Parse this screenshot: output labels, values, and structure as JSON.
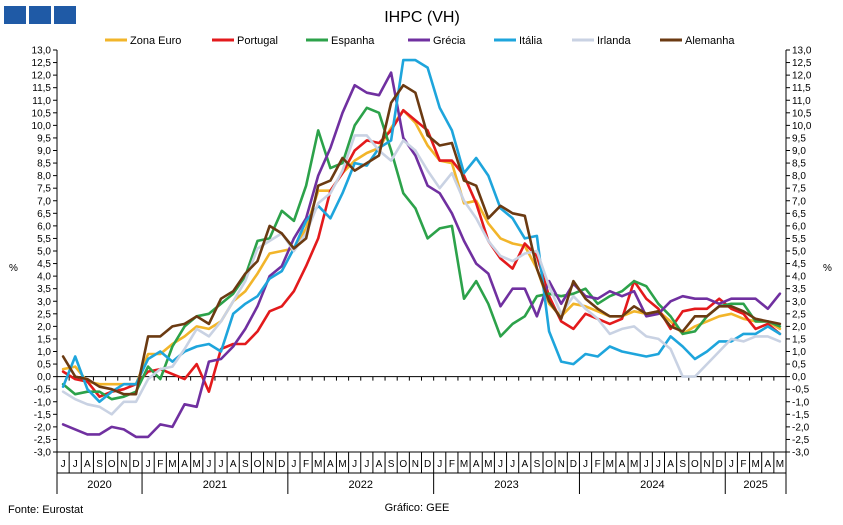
{
  "logo": {
    "blocks": 3,
    "color": "#1f5aa6"
  },
  "chart_data": {
    "type": "line",
    "title": "IHPC (VH)",
    "ylabel_left": "%",
    "ylabel_right": "%",
    "ylim": [
      -3.0,
      13.0
    ],
    "ystep": 0.5,
    "grid": false,
    "legend_position": "top",
    "x_months": [
      "J",
      "J",
      "A",
      "S",
      "O",
      "N",
      "D",
      "J",
      "F",
      "M",
      "A",
      "M",
      "J",
      "J",
      "A",
      "S",
      "O",
      "N",
      "D",
      "J",
      "F",
      "M",
      "A",
      "M",
      "J",
      "J",
      "A",
      "S",
      "O",
      "N",
      "D",
      "J",
      "F",
      "M",
      "A",
      "M",
      "J",
      "J",
      "A",
      "S",
      "O",
      "N",
      "D",
      "J",
      "F",
      "M",
      "A",
      "M",
      "J",
      "J",
      "A",
      "S",
      "O",
      "N",
      "D",
      "J",
      "F",
      "M",
      "A",
      "M"
    ],
    "years": [
      {
        "label": "2020",
        "start": 0,
        "end": 6
      },
      {
        "label": "2021",
        "start": 7,
        "end": 18
      },
      {
        "label": "2022",
        "start": 19,
        "end": 30
      },
      {
        "label": "2023",
        "start": 31,
        "end": 42
      },
      {
        "label": "2024",
        "start": 43,
        "end": 54
      },
      {
        "label": "2025",
        "start": 55,
        "end": 59
      }
    ],
    "series": [
      {
        "name": "Zona Euro",
        "color": "#f2b52a",
        "values": [
          0.3,
          0.4,
          -0.2,
          -0.3,
          -0.3,
          -0.3,
          -0.3,
          0.9,
          0.9,
          1.3,
          1.6,
          2.0,
          1.9,
          2.2,
          3.0,
          3.4,
          4.1,
          4.9,
          5.0,
          5.1,
          5.9,
          7.4,
          7.4,
          8.1,
          8.6,
          8.9,
          9.1,
          9.9,
          10.6,
          10.1,
          9.2,
          8.6,
          8.5,
          6.9,
          7.0,
          6.1,
          5.5,
          5.3,
          5.2,
          4.3,
          2.9,
          2.4,
          2.9,
          2.8,
          2.6,
          2.4,
          2.4,
          2.6,
          2.5,
          2.6,
          2.2,
          1.7,
          2.0,
          2.2,
          2.4,
          2.5,
          2.3,
          2.2,
          2.2,
          1.9
        ]
      },
      {
        "name": "Portugal",
        "color": "#e31a1c",
        "values": [
          0.2,
          -0.1,
          -0.2,
          -0.8,
          -0.6,
          -0.5,
          -0.3,
          0.2,
          0.3,
          0.1,
          -0.1,
          0.5,
          -0.6,
          1.1,
          1.3,
          1.3,
          1.8,
          2.6,
          2.8,
          3.4,
          4.4,
          5.5,
          7.4,
          8.1,
          9.0,
          9.4,
          9.3,
          9.8,
          10.6,
          10.2,
          9.8,
          8.6,
          8.6,
          8.0,
          6.9,
          5.4,
          4.7,
          4.3,
          5.3,
          4.8,
          3.2,
          2.2,
          1.9,
          2.5,
          2.3,
          2.1,
          2.3,
          3.8,
          3.1,
          2.7,
          1.9,
          2.6,
          2.7,
          2.7,
          3.1,
          2.7,
          2.5,
          1.9,
          2.1,
          1.7
        ]
      },
      {
        "name": "Espanha",
        "color": "#2ca24a",
        "values": [
          -0.3,
          -0.7,
          -0.6,
          -0.6,
          -0.9,
          -0.8,
          -0.6,
          0.4,
          -0.1,
          1.2,
          2.0,
          2.4,
          2.5,
          2.9,
          3.3,
          4.0,
          5.4,
          5.5,
          6.6,
          6.2,
          7.6,
          9.8,
          8.3,
          8.5,
          10.0,
          10.7,
          10.5,
          9.0,
          7.3,
          6.7,
          5.5,
          5.9,
          6.0,
          3.1,
          3.8,
          2.9,
          1.6,
          2.1,
          2.4,
          3.2,
          3.3,
          3.2,
          3.3,
          3.5,
          2.9,
          3.2,
          3.4,
          3.8,
          3.6,
          2.9,
          2.4,
          1.7,
          1.8,
          2.4,
          2.8,
          2.9,
          2.9,
          2.2,
          2.2,
          2.0
        ]
      },
      {
        "name": "Grécia",
        "color": "#7030a0",
        "values": [
          -1.9,
          -2.1,
          -2.3,
          -2.3,
          -2.0,
          -2.1,
          -2.4,
          -2.4,
          -1.9,
          -2.0,
          -1.1,
          -1.2,
          0.6,
          0.7,
          1.2,
          1.9,
          2.8,
          4.0,
          4.4,
          5.5,
          6.3,
          8.0,
          9.1,
          10.5,
          11.6,
          11.3,
          11.2,
          12.1,
          9.5,
          8.8,
          7.6,
          7.3,
          6.5,
          5.4,
          4.5,
          4.1,
          2.8,
          3.5,
          3.5,
          2.4,
          3.8,
          2.9,
          3.7,
          3.2,
          3.1,
          3.4,
          3.2,
          3.4,
          2.4,
          2.5,
          3.0,
          3.2,
          3.1,
          3.1,
          2.9,
          3.1,
          3.1,
          3.1,
          2.7,
          3.3
        ]
      },
      {
        "name": "Itália",
        "color": "#1ea5dc",
        "values": [
          -0.4,
          0.8,
          -0.5,
          -1.0,
          -0.6,
          -0.3,
          -0.3,
          0.7,
          1.0,
          0.6,
          1.0,
          1.2,
          1.3,
          1.0,
          2.5,
          2.9,
          3.2,
          3.9,
          4.2,
          5.1,
          6.2,
          6.8,
          6.3,
          7.3,
          8.5,
          8.4,
          9.1,
          9.4,
          12.6,
          12.6,
          12.3,
          10.7,
          9.8,
          8.1,
          8.7,
          8.0,
          6.7,
          6.3,
          5.5,
          5.6,
          1.8,
          0.6,
          0.5,
          0.9,
          0.8,
          1.2,
          1.0,
          0.9,
          0.8,
          0.9,
          1.6,
          1.2,
          0.7,
          1.0,
          1.4,
          1.4,
          1.7,
          1.7,
          2.0,
          1.7
        ]
      },
      {
        "name": "Irlanda",
        "color": "#c9d2e3",
        "values": [
          -0.6,
          -0.9,
          -1.1,
          -1.2,
          -1.5,
          -1.0,
          -1.0,
          -0.1,
          0.3,
          0.4,
          1.1,
          1.9,
          1.6,
          2.2,
          3.0,
          3.8,
          5.1,
          5.4,
          5.7,
          5.0,
          5.7,
          6.9,
          7.3,
          8.2,
          9.6,
          9.6,
          9.0,
          8.6,
          9.4,
          9.0,
          8.2,
          7.5,
          8.1,
          7.0,
          6.3,
          5.4,
          4.8,
          4.6,
          4.9,
          5.0,
          3.6,
          2.5,
          3.2,
          2.7,
          2.3,
          1.7,
          1.9,
          2.0,
          1.6,
          1.5,
          1.1,
          0.0,
          0.0,
          0.5,
          1.0,
          1.5,
          1.4,
          1.6,
          1.6,
          1.4
        ]
      },
      {
        "name": "Alemanha",
        "color": "#6b3a12",
        "values": [
          0.8,
          0.0,
          -0.1,
          -0.4,
          -0.5,
          -0.7,
          -0.7,
          1.6,
          1.6,
          2.0,
          2.1,
          2.4,
          2.1,
          3.1,
          3.4,
          4.1,
          4.6,
          6.0,
          5.7,
          5.1,
          5.5,
          7.6,
          7.8,
          8.7,
          8.2,
          8.5,
          8.8,
          10.9,
          11.6,
          11.3,
          9.6,
          9.2,
          9.3,
          7.8,
          7.6,
          6.3,
          6.8,
          6.5,
          6.4,
          4.3,
          3.0,
          2.3,
          3.8,
          3.1,
          2.7,
          2.4,
          2.4,
          2.8,
          2.5,
          2.6,
          2.0,
          1.8,
          2.4,
          2.4,
          2.8,
          2.8,
          2.6,
          2.3,
          2.2,
          2.1
        ]
      }
    ]
  },
  "footer": {
    "source": "Fonte: Eurostat",
    "credit": "Gráfico: GEE"
  }
}
